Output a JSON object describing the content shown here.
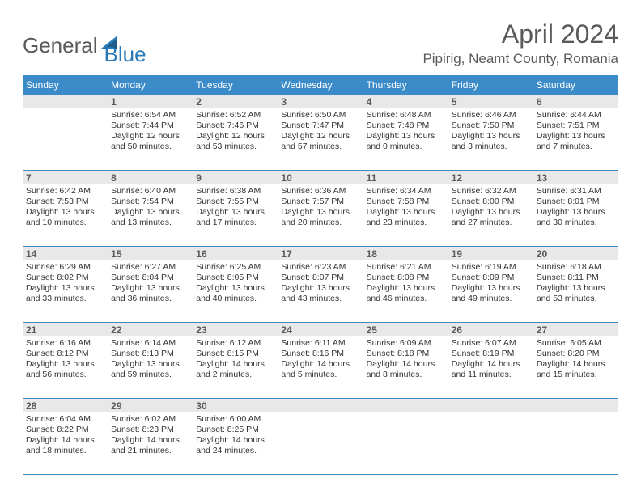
{
  "brand": {
    "part1": "General",
    "part2": "Blue"
  },
  "title": "April 2024",
  "location": "Pipirig, Neamt County, Romania",
  "colors": {
    "header_bg": "#3b8bc9",
    "header_text": "#ffffff",
    "daynum_bg": "#e8e8e8",
    "text": "#333333",
    "title_text": "#5a5a5a",
    "brand_gray": "#5a5a5a",
    "brand_blue": "#2a7ab8",
    "border": "#3b8bc9"
  },
  "dayNames": [
    "Sunday",
    "Monday",
    "Tuesday",
    "Wednesday",
    "Thursday",
    "Friday",
    "Saturday"
  ],
  "weeks": [
    [
      {
        "n": "",
        "lines": []
      },
      {
        "n": "1",
        "lines": [
          "Sunrise: 6:54 AM",
          "Sunset: 7:44 PM",
          "Daylight: 12 hours",
          "and 50 minutes."
        ]
      },
      {
        "n": "2",
        "lines": [
          "Sunrise: 6:52 AM",
          "Sunset: 7:46 PM",
          "Daylight: 12 hours",
          "and 53 minutes."
        ]
      },
      {
        "n": "3",
        "lines": [
          "Sunrise: 6:50 AM",
          "Sunset: 7:47 PM",
          "Daylight: 12 hours",
          "and 57 minutes."
        ]
      },
      {
        "n": "4",
        "lines": [
          "Sunrise: 6:48 AM",
          "Sunset: 7:48 PM",
          "Daylight: 13 hours",
          "and 0 minutes."
        ]
      },
      {
        "n": "5",
        "lines": [
          "Sunrise: 6:46 AM",
          "Sunset: 7:50 PM",
          "Daylight: 13 hours",
          "and 3 minutes."
        ]
      },
      {
        "n": "6",
        "lines": [
          "Sunrise: 6:44 AM",
          "Sunset: 7:51 PM",
          "Daylight: 13 hours",
          "and 7 minutes."
        ]
      }
    ],
    [
      {
        "n": "7",
        "lines": [
          "Sunrise: 6:42 AM",
          "Sunset: 7:53 PM",
          "Daylight: 13 hours",
          "and 10 minutes."
        ]
      },
      {
        "n": "8",
        "lines": [
          "Sunrise: 6:40 AM",
          "Sunset: 7:54 PM",
          "Daylight: 13 hours",
          "and 13 minutes."
        ]
      },
      {
        "n": "9",
        "lines": [
          "Sunrise: 6:38 AM",
          "Sunset: 7:55 PM",
          "Daylight: 13 hours",
          "and 17 minutes."
        ]
      },
      {
        "n": "10",
        "lines": [
          "Sunrise: 6:36 AM",
          "Sunset: 7:57 PM",
          "Daylight: 13 hours",
          "and 20 minutes."
        ]
      },
      {
        "n": "11",
        "lines": [
          "Sunrise: 6:34 AM",
          "Sunset: 7:58 PM",
          "Daylight: 13 hours",
          "and 23 minutes."
        ]
      },
      {
        "n": "12",
        "lines": [
          "Sunrise: 6:32 AM",
          "Sunset: 8:00 PM",
          "Daylight: 13 hours",
          "and 27 minutes."
        ]
      },
      {
        "n": "13",
        "lines": [
          "Sunrise: 6:31 AM",
          "Sunset: 8:01 PM",
          "Daylight: 13 hours",
          "and 30 minutes."
        ]
      }
    ],
    [
      {
        "n": "14",
        "lines": [
          "Sunrise: 6:29 AM",
          "Sunset: 8:02 PM",
          "Daylight: 13 hours",
          "and 33 minutes."
        ]
      },
      {
        "n": "15",
        "lines": [
          "Sunrise: 6:27 AM",
          "Sunset: 8:04 PM",
          "Daylight: 13 hours",
          "and 36 minutes."
        ]
      },
      {
        "n": "16",
        "lines": [
          "Sunrise: 6:25 AM",
          "Sunset: 8:05 PM",
          "Daylight: 13 hours",
          "and 40 minutes."
        ]
      },
      {
        "n": "17",
        "lines": [
          "Sunrise: 6:23 AM",
          "Sunset: 8:07 PM",
          "Daylight: 13 hours",
          "and 43 minutes."
        ]
      },
      {
        "n": "18",
        "lines": [
          "Sunrise: 6:21 AM",
          "Sunset: 8:08 PM",
          "Daylight: 13 hours",
          "and 46 minutes."
        ]
      },
      {
        "n": "19",
        "lines": [
          "Sunrise: 6:19 AM",
          "Sunset: 8:09 PM",
          "Daylight: 13 hours",
          "and 49 minutes."
        ]
      },
      {
        "n": "20",
        "lines": [
          "Sunrise: 6:18 AM",
          "Sunset: 8:11 PM",
          "Daylight: 13 hours",
          "and 53 minutes."
        ]
      }
    ],
    [
      {
        "n": "21",
        "lines": [
          "Sunrise: 6:16 AM",
          "Sunset: 8:12 PM",
          "Daylight: 13 hours",
          "and 56 minutes."
        ]
      },
      {
        "n": "22",
        "lines": [
          "Sunrise: 6:14 AM",
          "Sunset: 8:13 PM",
          "Daylight: 13 hours",
          "and 59 minutes."
        ]
      },
      {
        "n": "23",
        "lines": [
          "Sunrise: 6:12 AM",
          "Sunset: 8:15 PM",
          "Daylight: 14 hours",
          "and 2 minutes."
        ]
      },
      {
        "n": "24",
        "lines": [
          "Sunrise: 6:11 AM",
          "Sunset: 8:16 PM",
          "Daylight: 14 hours",
          "and 5 minutes."
        ]
      },
      {
        "n": "25",
        "lines": [
          "Sunrise: 6:09 AM",
          "Sunset: 8:18 PM",
          "Daylight: 14 hours",
          "and 8 minutes."
        ]
      },
      {
        "n": "26",
        "lines": [
          "Sunrise: 6:07 AM",
          "Sunset: 8:19 PM",
          "Daylight: 14 hours",
          "and 11 minutes."
        ]
      },
      {
        "n": "27",
        "lines": [
          "Sunrise: 6:05 AM",
          "Sunset: 8:20 PM",
          "Daylight: 14 hours",
          "and 15 minutes."
        ]
      }
    ],
    [
      {
        "n": "28",
        "lines": [
          "Sunrise: 6:04 AM",
          "Sunset: 8:22 PM",
          "Daylight: 14 hours",
          "and 18 minutes."
        ]
      },
      {
        "n": "29",
        "lines": [
          "Sunrise: 6:02 AM",
          "Sunset: 8:23 PM",
          "Daylight: 14 hours",
          "and 21 minutes."
        ]
      },
      {
        "n": "30",
        "lines": [
          "Sunrise: 6:00 AM",
          "Sunset: 8:25 PM",
          "Daylight: 14 hours",
          "and 24 minutes."
        ]
      },
      {
        "n": "",
        "lines": []
      },
      {
        "n": "",
        "lines": []
      },
      {
        "n": "",
        "lines": []
      },
      {
        "n": "",
        "lines": []
      }
    ]
  ]
}
